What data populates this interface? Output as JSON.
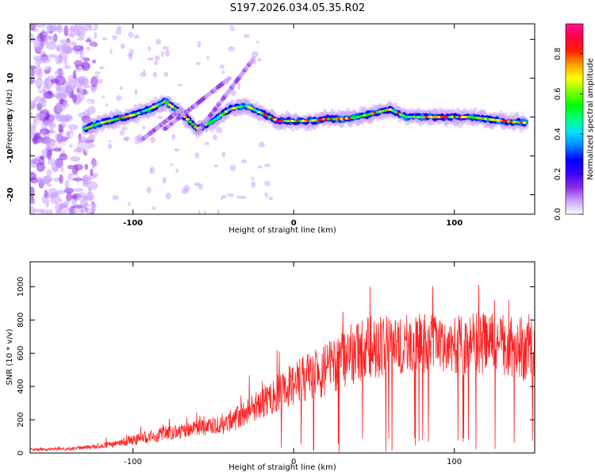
{
  "title": "S197.2026.034.05.35.R02",
  "chart_data": [
    {
      "type": "heatmap",
      "name": "spectrogram",
      "xlabel": "Height of straight line (km)",
      "ylabel": "Frequency (Hz)",
      "xlim": [
        -164,
        150
      ],
      "ylim": [
        -25,
        24
      ],
      "xticks": [
        -100,
        0,
        100
      ],
      "xtick_labels": [
        "-100",
        "0",
        "100"
      ],
      "yticks": [
        20,
        10,
        0,
        -10,
        -20
      ],
      "ytick_labels": [
        "20",
        "10",
        "0",
        "-10",
        "-20"
      ],
      "colorbar": {
        "label": "Normalized spectral amplitude",
        "range": [
          0,
          0.95
        ],
        "ticks": [
          0,
          0.2,
          0.4,
          0.6,
          0.8
        ],
        "tick_labels": [
          "0.0",
          "0.2",
          "0.4",
          "0.6",
          "0.8"
        ],
        "colormap": [
          "#ffffff",
          "#c8a0ff",
          "#8a2be2",
          "#3a00ff",
          "#0000ff",
          "#0080ff",
          "#00e0ff",
          "#00ff80",
          "#00ff00",
          "#80ff00",
          "#ffff00",
          "#ffa000",
          "#ff2000",
          "#ff0040",
          "#ff1493"
        ]
      },
      "ridge": {
        "description": "main spectral line frequency vs height",
        "x": [
          -130,
          -120,
          -110,
          -100,
          -90,
          -80,
          -70,
          -60,
          -50,
          -40,
          -30,
          -20,
          -10,
          0,
          10,
          20,
          30,
          40,
          50,
          60,
          70,
          80,
          90,
          100,
          110,
          120,
          130,
          145
        ],
        "y": [
          -3,
          -1.5,
          -0.5,
          0.5,
          2,
          4,
          1,
          -3,
          -1,
          2,
          3,
          1,
          -1,
          -1,
          -1,
          -0.5,
          -0.5,
          0,
          1,
          2,
          0,
          0,
          0,
          0,
          0,
          -0.5,
          -1,
          -1.5
        ]
      }
    },
    {
      "type": "line",
      "name": "snr",
      "xlabel": "Height of straight line (km)",
      "ylabel": "SNR (10 * v/v)",
      "xlim": [
        -164,
        150
      ],
      "ylim": [
        0,
        1150
      ],
      "xticks": [
        -100,
        0,
        100
      ],
      "xtick_labels": [
        "-100",
        "0",
        "100"
      ],
      "yticks": [
        0,
        200,
        400,
        600,
        800,
        1000
      ],
      "ytick_labels": [
        "0",
        "200",
        "400",
        "600",
        "800",
        "1000"
      ],
      "color": "#ff2020",
      "envelope": {
        "x": [
          -164,
          -140,
          -120,
          -100,
          -80,
          -60,
          -40,
          -20,
          0,
          20,
          40,
          60,
          80,
          100,
          120,
          150
        ],
        "mean": [
          20,
          25,
          40,
          80,
          120,
          150,
          180,
          300,
          420,
          500,
          620,
          650,
          660,
          650,
          660,
          600
        ],
        "spread": [
          10,
          12,
          20,
          40,
          60,
          60,
          80,
          120,
          160,
          200,
          250,
          230,
          220,
          230,
          240,
          250
        ]
      }
    }
  ]
}
